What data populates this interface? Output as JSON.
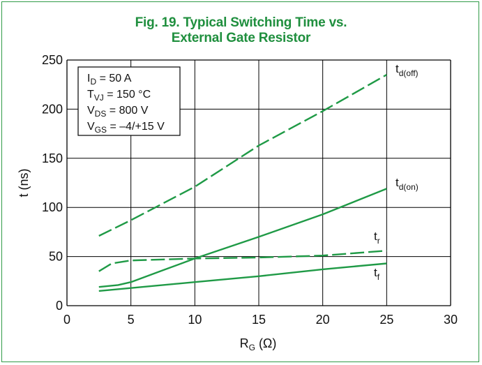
{
  "title": {
    "line1": "Fig. 19. Typical Switching Time vs.",
    "line2": "External Gate Resistor"
  },
  "conditions": {
    "id": {
      "main": "I",
      "sub": "D",
      "rest": " = 50 A"
    },
    "tvj": {
      "main": "T",
      "sub": "VJ",
      "rest": " = 150 °C"
    },
    "vds": {
      "main": "V",
      "sub": "DS",
      "rest": " = 800 V"
    },
    "vgs": {
      "main": "V",
      "sub": "GS",
      "rest": " = –4/+15 V"
    }
  },
  "colors": {
    "series": "#1f9a46",
    "title": "#1f8f3e",
    "frame": "#2f9a46",
    "grid": "#000000"
  },
  "chart_data": {
    "type": "line",
    "xlabel": {
      "main": "R",
      "sub": "G",
      "rest": " (Ω)"
    },
    "ylabel": "t (ns)",
    "xlim": [
      0,
      30
    ],
    "ylim": [
      0,
      250
    ],
    "xticks": [
      "0",
      "5",
      "10",
      "15",
      "20",
      "25",
      "30"
    ],
    "yticks": [
      "0",
      "50",
      "100",
      "150",
      "200",
      "250"
    ],
    "grid": true,
    "series": [
      {
        "name": {
          "main": "t",
          "sub": "d(off)"
        },
        "style": "dashed",
        "x": [
          2.5,
          5,
          10,
          15,
          20,
          25
        ],
        "y": [
          71,
          87,
          121,
          163,
          198,
          235
        ]
      },
      {
        "name": {
          "main": "t",
          "sub": "d(on)"
        },
        "style": "solid",
        "x": [
          2.5,
          4,
          5,
          7.5,
          10,
          15,
          20,
          25
        ],
        "y": [
          19,
          21,
          24,
          36,
          48,
          70,
          93,
          119
        ]
      },
      {
        "name": {
          "main": "t",
          "sub": "r"
        },
        "style": "dashed",
        "x": [
          2.5,
          3.5,
          5,
          7.5,
          10,
          15,
          20,
          25
        ],
        "y": [
          35,
          43,
          46,
          47,
          48,
          49,
          51,
          56
        ]
      },
      {
        "name": {
          "main": "t",
          "sub": "f"
        },
        "style": "solid",
        "x": [
          2.5,
          5,
          10,
          15,
          20,
          25
        ],
        "y": [
          15,
          18,
          24,
          30,
          37,
          43
        ]
      }
    ]
  }
}
